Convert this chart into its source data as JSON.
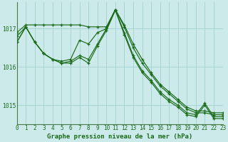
{
  "title": "Graphe pression niveau de la mer (hPa)",
  "background_color": "#cdeaea",
  "grid_color": "#a8d4d4",
  "line_color": "#1a6b1a",
  "spine_color": "#4a7a4a",
  "xlim": [
    0,
    23
  ],
  "ylim": [
    1014.5,
    1017.7
  ],
  "yticks": [
    1015,
    1016,
    1017
  ],
  "xticks": [
    0,
    1,
    2,
    3,
    4,
    5,
    6,
    7,
    8,
    9,
    10,
    11,
    12,
    13,
    14,
    15,
    16,
    17,
    18,
    19,
    20,
    21,
    22,
    23
  ],
  "xlabel_fontsize": 6.5,
  "tick_fontsize": 5.5,
  "series": [
    [
      1016.9,
      1017.1,
      1017.1,
      1017.1,
      1017.1,
      1017.1,
      1017.1,
      1017.1,
      1017.05,
      1017.05,
      1017.05,
      1017.5,
      1017.1,
      1016.6,
      1016.2,
      1015.85,
      1015.55,
      1015.35,
      1015.15,
      1014.95,
      1014.85,
      1014.85,
      1014.8,
      1014.8
    ],
    [
      1016.8,
      1017.05,
      1016.65,
      1016.35,
      1016.2,
      1016.15,
      1016.2,
      1016.7,
      1016.6,
      1016.9,
      1017.0,
      1017.5,
      1017.05,
      1016.5,
      1016.1,
      1015.8,
      1015.5,
      1015.3,
      1015.1,
      1014.9,
      1014.8,
      1014.8,
      1014.75,
      1014.75
    ],
    [
      1016.65,
      1017.05,
      1016.65,
      1016.35,
      1016.2,
      1016.1,
      1016.15,
      1016.3,
      1016.2,
      1016.6,
      1017.0,
      1017.5,
      1016.9,
      1016.3,
      1015.9,
      1015.65,
      1015.35,
      1015.15,
      1015.0,
      1014.8,
      1014.75,
      1015.05,
      1014.7,
      1014.7
    ],
    [
      1016.65,
      1017.05,
      1016.65,
      1016.35,
      1016.2,
      1016.1,
      1016.1,
      1016.25,
      1016.1,
      1016.55,
      1016.95,
      1017.48,
      1016.85,
      1016.25,
      1015.85,
      1015.6,
      1015.3,
      1015.1,
      1014.95,
      1014.75,
      1014.7,
      1015.0,
      1014.65,
      1014.65
    ]
  ]
}
